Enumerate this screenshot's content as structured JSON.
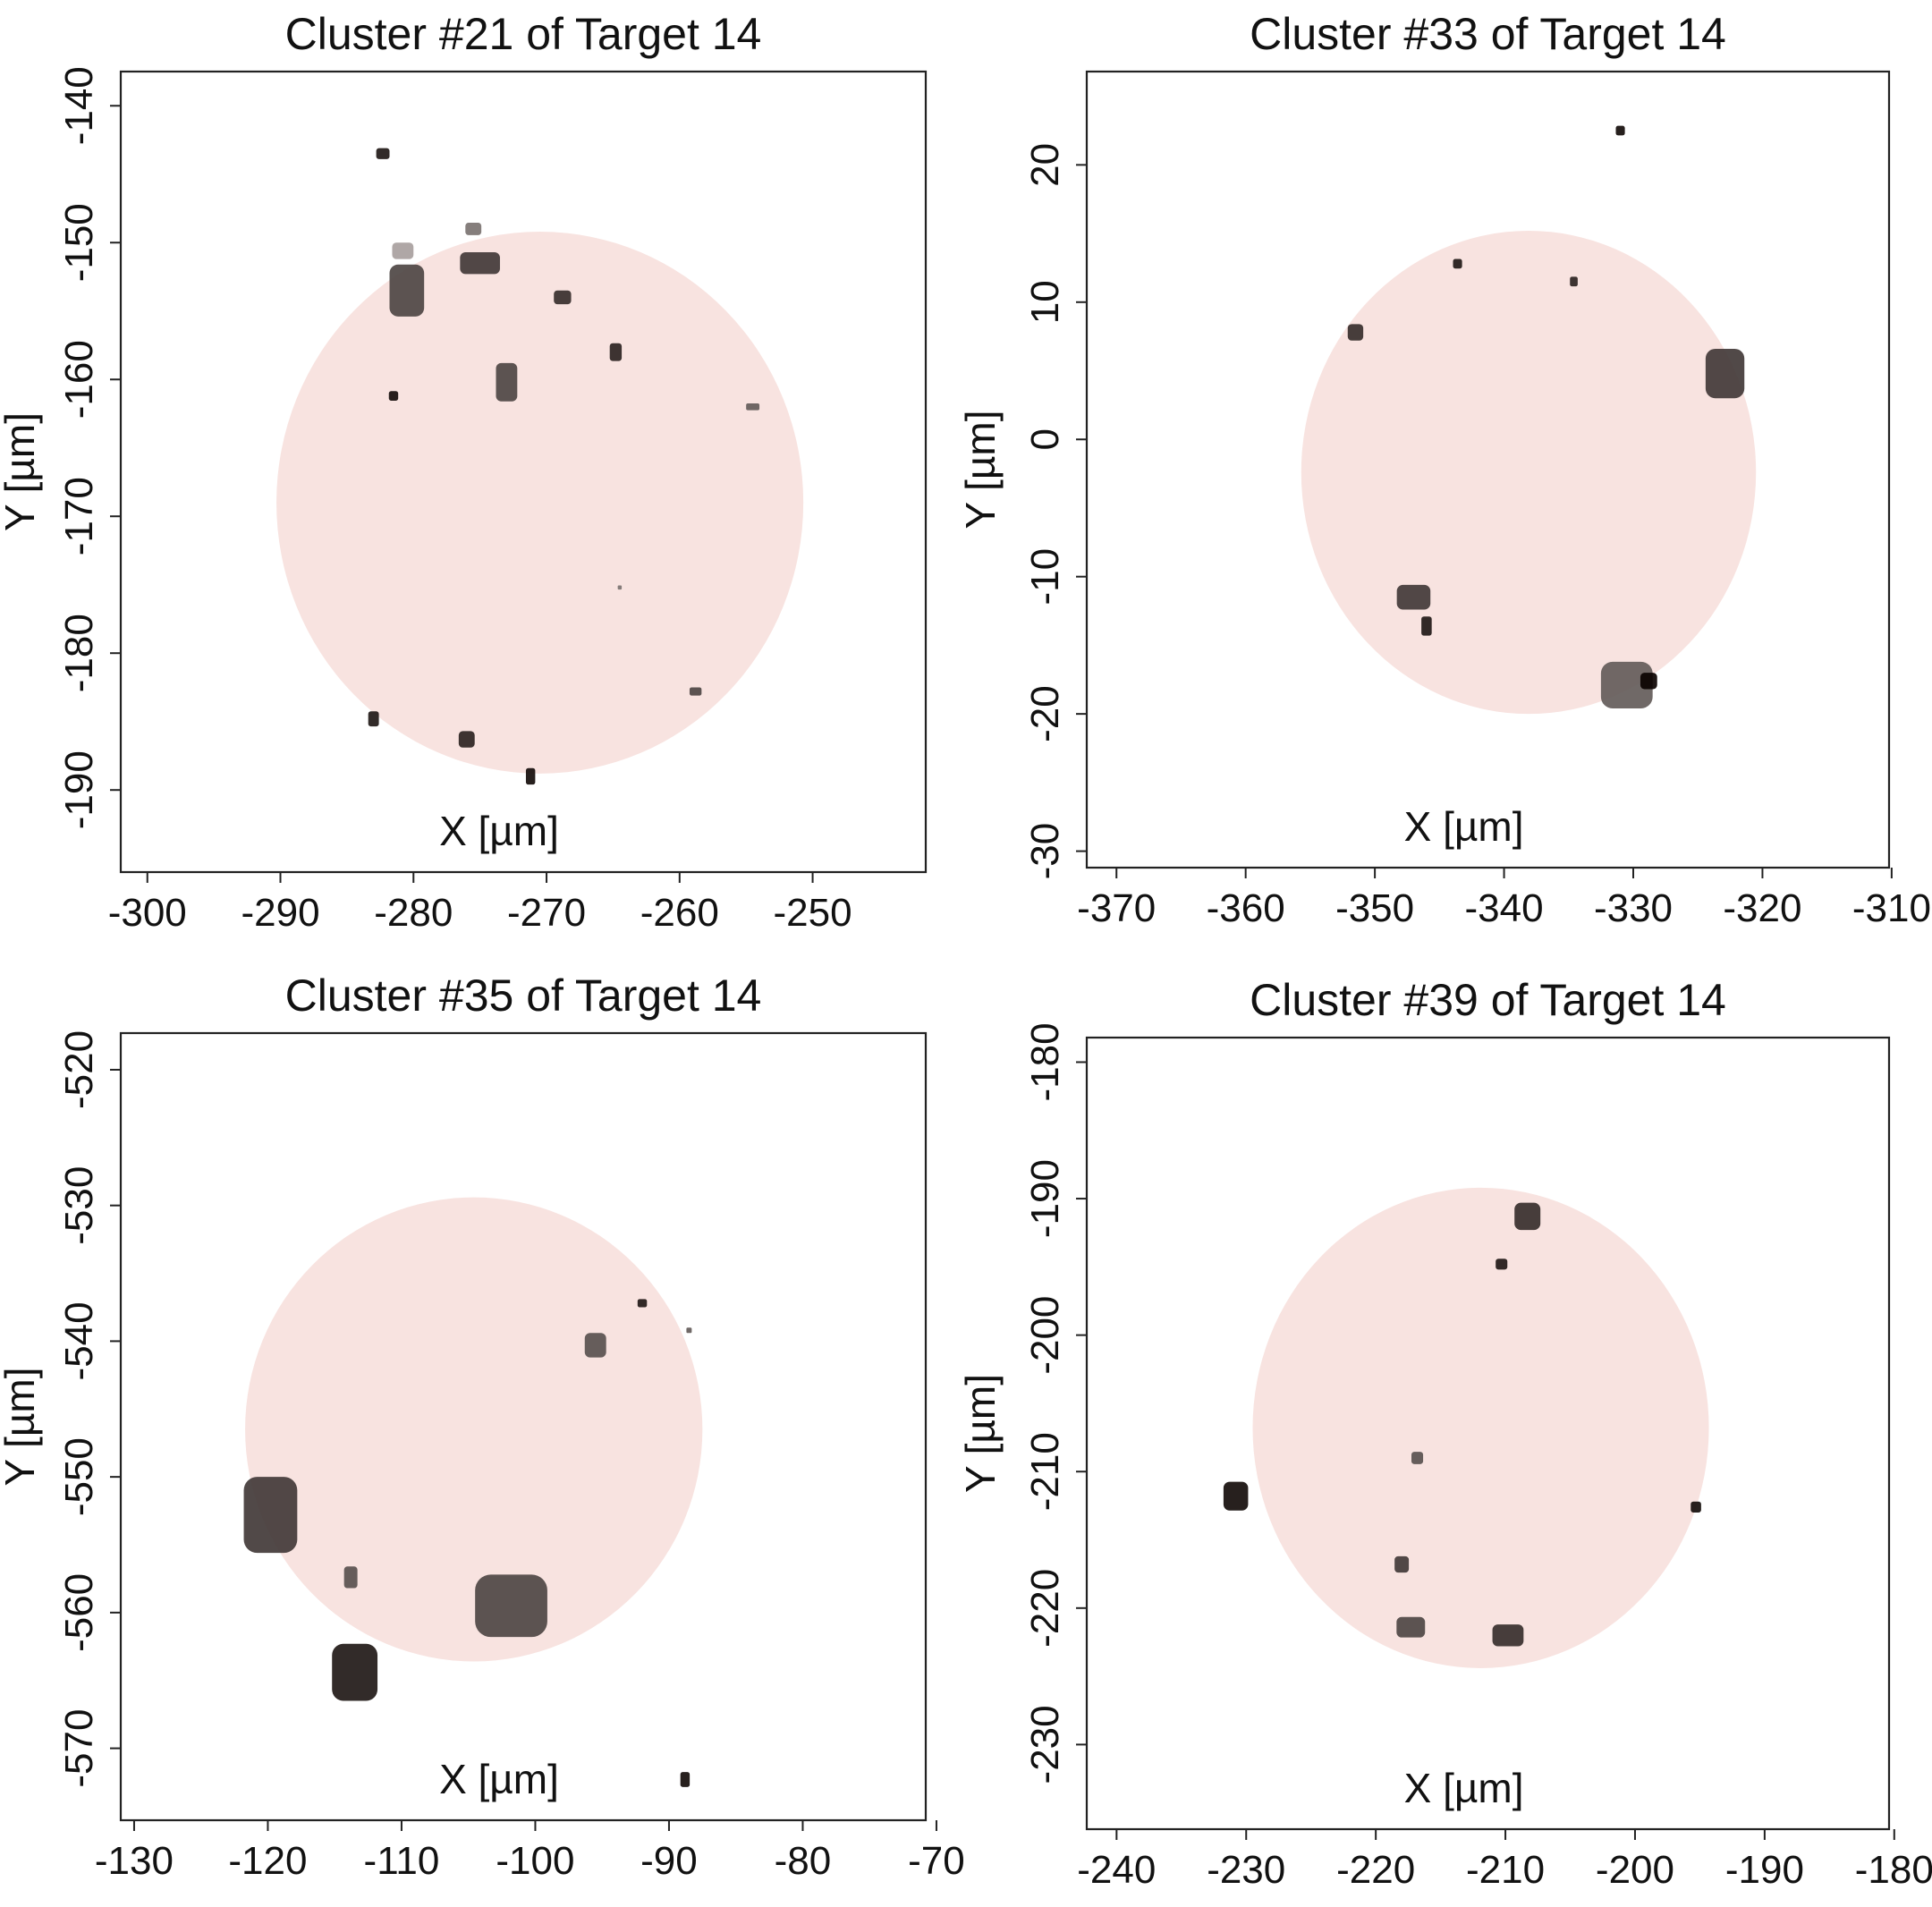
{
  "figure": {
    "panels": 4
  },
  "chart_data": [
    {
      "type": "scatter",
      "title": "Cluster #21 of Target 14",
      "xlabel": "X [µm]",
      "ylabel": "Y [µm]",
      "xlim": [
        -302,
        -241.5
      ],
      "ylim": [
        -196,
        -137.5
      ],
      "xticks": [
        -300,
        -290,
        -280,
        -270,
        -260,
        -250
      ],
      "yticks": [
        -140,
        -150,
        -160,
        -170,
        -180,
        -190
      ],
      "target_circle": {
        "cx": -270.5,
        "cy": -169,
        "r": 19.8,
        "color": "#f8e3e0"
      },
      "points": [
        {
          "x": -282.3,
          "y": -143.5,
          "w": 1.0,
          "h": 0.8,
          "shade": 0.9
        },
        {
          "x": -275.5,
          "y": -149.0,
          "w": 1.2,
          "h": 0.9,
          "shade": 0.5
        },
        {
          "x": -275.0,
          "y": -151.5,
          "w": 3.0,
          "h": 1.6,
          "shade": 0.75
        },
        {
          "x": -280.5,
          "y": -153.5,
          "w": 2.6,
          "h": 3.8,
          "shade": 0.7
        },
        {
          "x": -280.8,
          "y": -150.6,
          "w": 1.6,
          "h": 1.2,
          "shade": 0.3
        },
        {
          "x": -268.8,
          "y": -154.0,
          "w": 1.3,
          "h": 1.0,
          "shade": 0.8
        },
        {
          "x": -264.8,
          "y": -158.0,
          "w": 0.9,
          "h": 1.3,
          "shade": 0.85
        },
        {
          "x": -273.0,
          "y": -160.2,
          "w": 1.6,
          "h": 2.8,
          "shade": 0.7
        },
        {
          "x": -281.5,
          "y": -161.2,
          "w": 0.7,
          "h": 0.7,
          "shade": 0.95
        },
        {
          "x": -254.5,
          "y": -162.0,
          "w": 1.0,
          "h": 0.5,
          "shade": 0.6
        },
        {
          "x": -264.5,
          "y": -175.2,
          "w": 0.3,
          "h": 0.3,
          "shade": 0.5
        },
        {
          "x": -258.8,
          "y": -182.8,
          "w": 0.9,
          "h": 0.6,
          "shade": 0.7
        },
        {
          "x": -283.0,
          "y": -184.8,
          "w": 0.8,
          "h": 1.1,
          "shade": 0.9
        },
        {
          "x": -276.0,
          "y": -186.3,
          "w": 1.2,
          "h": 1.2,
          "shade": 0.85
        },
        {
          "x": -271.2,
          "y": -189.0,
          "w": 0.7,
          "h": 1.2,
          "shade": 0.95
        }
      ]
    },
    {
      "type": "scatter",
      "title": "Cluster #33 of Target 14",
      "xlabel": "X [µm]",
      "ylabel": "Y [µm]",
      "xlim": [
        -372.3,
        -310.2
      ],
      "ylim": [
        -31.2,
        26.8
      ],
      "xticks": [
        -370,
        -360,
        -350,
        -340,
        -330,
        -320,
        -310
      ],
      "yticks": [
        20,
        10,
        0,
        -10,
        -20,
        -30
      ],
      "target_circle": {
        "cx": -338.1,
        "cy": -2.4,
        "r": 17.6,
        "color": "#f8e3e0"
      },
      "points": [
        {
          "x": -331.0,
          "y": 22.5,
          "w": 0.7,
          "h": 0.7,
          "shade": 0.95
        },
        {
          "x": -343.6,
          "y": 12.8,
          "w": 0.7,
          "h": 0.7,
          "shade": 0.9
        },
        {
          "x": -334.6,
          "y": 11.5,
          "w": 0.6,
          "h": 0.7,
          "shade": 0.85
        },
        {
          "x": -351.5,
          "y": 7.8,
          "w": 1.2,
          "h": 1.2,
          "shade": 0.8
        },
        {
          "x": -322.9,
          "y": 4.8,
          "w": 3.0,
          "h": 3.6,
          "shade": 0.75
        },
        {
          "x": -347.0,
          "y": -11.5,
          "w": 2.6,
          "h": 1.8,
          "shade": 0.75
        },
        {
          "x": -346.0,
          "y": -13.6,
          "w": 0.8,
          "h": 1.4,
          "shade": 0.9
        },
        {
          "x": -330.5,
          "y": -17.9,
          "w": 4.0,
          "h": 3.4,
          "shade": 0.6
        },
        {
          "x": -328.8,
          "y": -17.6,
          "w": 1.3,
          "h": 1.2,
          "shade": 1.0
        }
      ]
    },
    {
      "type": "scatter",
      "title": "Cluster #35 of Target 14",
      "xlabel": "X [µm]",
      "ylabel": "Y [µm]",
      "xlim": [
        -131.0,
        -70.8
      ],
      "ylim": [
        -575.3,
        -517.3
      ],
      "xticks": [
        -130,
        -120,
        -110,
        -100,
        -90,
        -80,
        -70
      ],
      "yticks": [
        -520,
        -530,
        -540,
        -550,
        -560,
        -570
      ],
      "target_circle": {
        "cx": -104.6,
        "cy": -546.5,
        "r": 17.1,
        "color": "#f8e3e0"
      },
      "points": [
        {
          "x": -92.0,
          "y": -537.2,
          "w": 0.7,
          "h": 0.6,
          "shade": 0.9
        },
        {
          "x": -88.5,
          "y": -539.2,
          "w": 0.4,
          "h": 0.4,
          "shade": 0.6
        },
        {
          "x": -95.5,
          "y": -540.3,
          "w": 1.6,
          "h": 1.8,
          "shade": 0.65
        },
        {
          "x": -119.8,
          "y": -552.8,
          "w": 4.0,
          "h": 5.6,
          "shade": 0.75
        },
        {
          "x": -113.8,
          "y": -557.4,
          "w": 1.0,
          "h": 1.6,
          "shade": 0.65
        },
        {
          "x": -101.8,
          "y": -559.5,
          "w": 5.4,
          "h": 4.6,
          "shade": 0.7
        },
        {
          "x": -113.5,
          "y": -564.4,
          "w": 3.4,
          "h": 4.2,
          "shade": 0.9
        },
        {
          "x": -88.8,
          "y": -572.3,
          "w": 0.7,
          "h": 1.1,
          "shade": 0.95
        }
      ]
    },
    {
      "type": "scatter",
      "title": "Cluster #39 of Target 14",
      "xlabel": "X [µm]",
      "ylabel": "Y [µm]",
      "xlim": [
        -242.3,
        -180.4
      ],
      "ylim": [
        -236.2,
        -178.2
      ],
      "xticks": [
        -240,
        -230,
        -220,
        -210,
        -200,
        -190,
        -180
      ],
      "yticks": [
        -180,
        -190,
        -200,
        -210,
        -220,
        -230
      ],
      "target_circle": {
        "cx": -211.9,
        "cy": -206.8,
        "r": 17.6,
        "color": "#f8e3e0"
      },
      "points": [
        {
          "x": -208.3,
          "y": -191.3,
          "w": 2.0,
          "h": 2.0,
          "shade": 0.8
        },
        {
          "x": -210.3,
          "y": -194.8,
          "w": 0.9,
          "h": 0.8,
          "shade": 0.9
        },
        {
          "x": -216.8,
          "y": -209.0,
          "w": 0.9,
          "h": 0.9,
          "shade": 0.65
        },
        {
          "x": -230.8,
          "y": -211.8,
          "w": 1.9,
          "h": 2.1,
          "shade": 0.95
        },
        {
          "x": -195.3,
          "y": -212.6,
          "w": 0.8,
          "h": 0.8,
          "shade": 0.95
        },
        {
          "x": -218.0,
          "y": -216.8,
          "w": 1.1,
          "h": 1.2,
          "shade": 0.75
        },
        {
          "x": -217.3,
          "y": -221.4,
          "w": 2.2,
          "h": 1.5,
          "shade": 0.7
        },
        {
          "x": -209.8,
          "y": -222.0,
          "w": 2.4,
          "h": 1.6,
          "shade": 0.8
        }
      ]
    }
  ]
}
